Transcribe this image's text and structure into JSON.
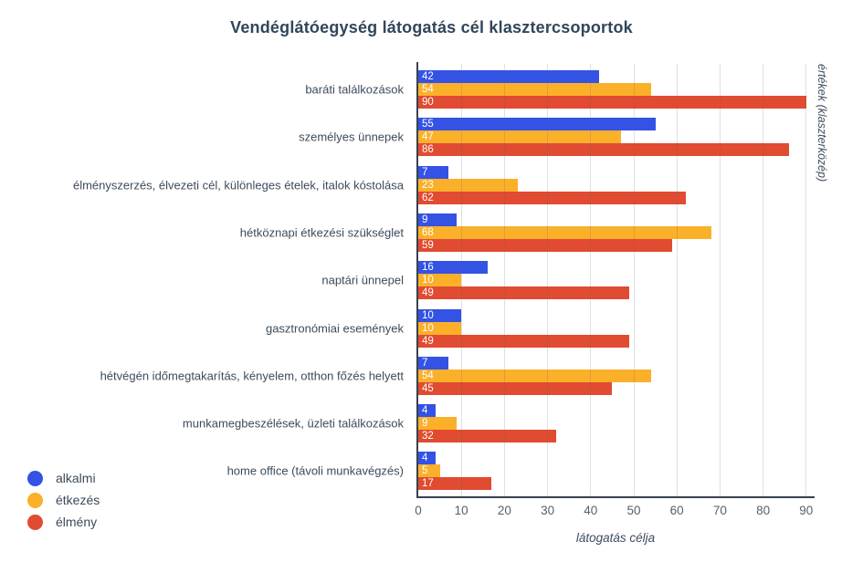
{
  "title": "Vendéglátóegység látogatás cél klasztercsoportok",
  "chart_data": {
    "type": "bar",
    "orientation": "horizontal",
    "title": "Vendéglátóegység látogatás cél klasztercsoportok",
    "categories": [
      "baráti találkozások",
      "személyes ünnepek",
      "élményszerzés, élvezeti cél, különleges ételek, italok kóstolása",
      "hétköznapi étkezési szükséglet",
      "naptári ünnepel",
      "gasztronómiai események",
      "hétvégén időmegtakarítás, kényelem, otthon főzés helyett",
      "munkamegbeszélések, üzleti találkozások",
      "home office (távoli munkavégzés)"
    ],
    "series": [
      {
        "name": "alkalmi",
        "color": "#3452E4",
        "values": [
          42,
          55,
          7,
          9,
          16,
          10,
          7,
          4,
          4
        ]
      },
      {
        "name": "étkezés",
        "color": "#FBB02A",
        "values": [
          54,
          47,
          23,
          68,
          10,
          10,
          54,
          9,
          5
        ]
      },
      {
        "name": "élmény",
        "color": "#E04B31",
        "values": [
          90,
          86,
          62,
          59,
          49,
          49,
          45,
          32,
          17
        ]
      }
    ],
    "xlabel": "látogatás célja",
    "ylabel_right": "értékek (klaszterközép)",
    "xlim": [
      0,
      90
    ],
    "xticks": [
      0,
      10,
      20,
      30,
      40,
      50,
      60,
      70,
      80,
      90
    ],
    "grid": true,
    "bar_value_labels": true,
    "legend_position": "bottom-left"
  }
}
